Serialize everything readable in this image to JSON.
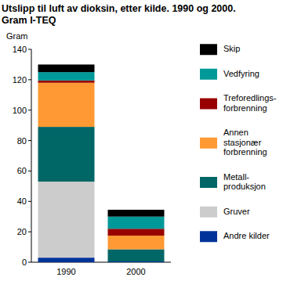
{
  "chart_data": {
    "type": "bar",
    "stacked": true,
    "title": "Utslipp til luft av dioksin, etter kilde. 1990 og 2000.",
    "subtitle": "Gram I-TEQ",
    "y_label": "Gram",
    "categories": [
      "1990",
      "2000"
    ],
    "series": [
      {
        "name": "Andre kilder",
        "color": "#003399",
        "values": [
          3,
          0.5
        ]
      },
      {
        "name": "Gruver",
        "color": "#cccccc",
        "values": [
          50,
          0
        ]
      },
      {
        "name": "Metall-produksjon",
        "color": "#006666",
        "values": [
          36,
          8
        ]
      },
      {
        "name": "Annen stasjonær forbrenning",
        "color": "#ff9933",
        "values": [
          29,
          9
        ]
      },
      {
        "name": "Treforedlings-forbrenning",
        "color": "#990000",
        "values": [
          1.5,
          4.5
        ]
      },
      {
        "name": "Vedfyring",
        "color": "#009999",
        "values": [
          5.5,
          8
        ]
      },
      {
        "name": "Skip",
        "color": "#000000",
        "values": [
          5,
          4.5
        ]
      }
    ],
    "ylim": [
      0,
      140
    ],
    "yticks": [
      0,
      20,
      40,
      60,
      80,
      100,
      120,
      140
    ],
    "grid": false,
    "legend": "right"
  }
}
